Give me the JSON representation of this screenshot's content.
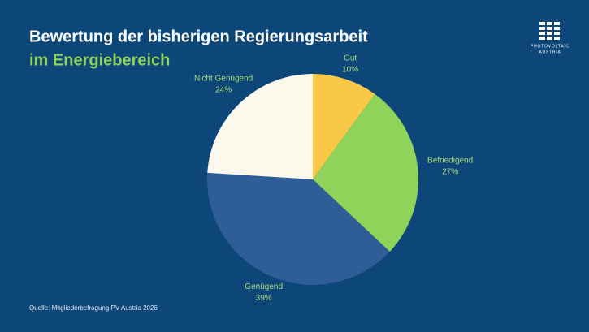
{
  "chart_data": {
    "type": "pie",
    "title": "Bewertung der bisherigen Regierungsarbeit",
    "subtitle": "im Energiebereich",
    "categories": [
      "Gut",
      "Befriedigend",
      "Genügend",
      "Nicht Genügend"
    ],
    "values": [
      10,
      27,
      39,
      24
    ],
    "value_labels": [
      "10%",
      "27%",
      "39%",
      "24%"
    ],
    "colors": [
      "#f9c846",
      "#8fd35a",
      "#2f5e96",
      "#fdf8ec"
    ],
    "source": "Quelle: Mitgliederbefragung PV Austria 2026"
  },
  "logo": {
    "line1": "PHOTOVOLTAIC",
    "line2": "AUSTRIA"
  }
}
